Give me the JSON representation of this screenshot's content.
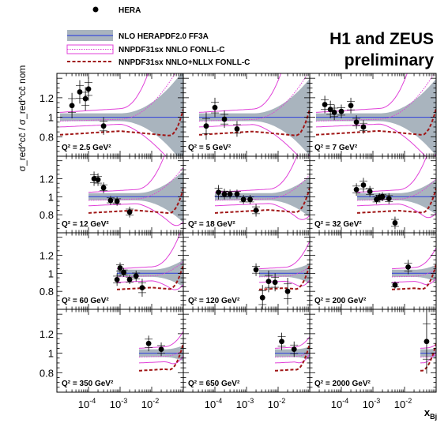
{
  "header": {
    "title_line1": "H1 and ZEUS",
    "title_line2": "preliminary"
  },
  "legend": [
    {
      "key": "hera",
      "label": "HERA"
    },
    {
      "key": "herapdf",
      "label": "NLO HERAPDF2.0 FF3A"
    },
    {
      "key": "nnlo",
      "label": "NNPDF31sx NNLO FONLL-C"
    },
    {
      "key": "nnllx",
      "label": "NNPDF31sx NNLO+NLLX FONLL-C"
    }
  ],
  "colors": {
    "band": "#a9b4be",
    "central": "#3b4bd8",
    "nnpdf": "#e040d8",
    "nnllx": "#a01616",
    "data": "#000000"
  },
  "chart_data": {
    "type": "scatter",
    "layout": "3x4 grid of panels",
    "xlabel": "x_Bj",
    "ylabel": "σ_red^cc̄ / σ_red^cc̄ nom",
    "x_log": true,
    "xlim": [
      1e-05,
      0.1
    ],
    "ylim": [
      0.6,
      1.45
    ],
    "x_ticks": [
      "10^-4",
      "10^-3",
      "10^-2"
    ],
    "y_ticks": [
      "0.8",
      "1",
      "1.2"
    ],
    "panels": [
      {
        "q2_label": "Q² = 2.5 GeV²",
        "points": [
          {
            "x": 3e-05,
            "y": 1.12,
            "err": 0.13
          },
          {
            "x": 5.3e-05,
            "y": 1.26,
            "err": 0.12
          },
          {
            "x": 8e-05,
            "y": 1.19,
            "err": 0.12
          },
          {
            "x": 0.0001,
            "y": 1.29,
            "err": 0.12
          },
          {
            "x": 0.0003,
            "y": 0.91,
            "err": 0.09
          }
        ]
      },
      {
        "q2_label": "Q² = 5 GeV²",
        "points": [
          {
            "x": 5.3e-05,
            "y": 0.91,
            "err": 0.14
          },
          {
            "x": 0.0001,
            "y": 1.1,
            "err": 0.1
          },
          {
            "x": 0.0002,
            "y": 0.98,
            "err": 0.09
          },
          {
            "x": 0.0005,
            "y": 0.88,
            "err": 0.08
          }
        ]
      },
      {
        "q2_label": "Q² = 7 GeV²",
        "points": [
          {
            "x": 3e-05,
            "y": 1.13,
            "err": 0.09
          },
          {
            "x": 4.5e-05,
            "y": 1.08,
            "err": 0.09
          },
          {
            "x": 6e-05,
            "y": 1.05,
            "err": 0.08
          },
          {
            "x": 0.0001,
            "y": 1.06,
            "err": 0.07
          },
          {
            "x": 0.0002,
            "y": 1.12,
            "err": 0.08
          },
          {
            "x": 0.0003,
            "y": 0.95,
            "err": 0.07
          },
          {
            "x": 0.0005,
            "y": 0.9,
            "err": 0.07
          }
        ]
      },
      {
        "q2_label": "Q² = 12 GeV²",
        "points": [
          {
            "x": 0.00015,
            "y": 1.2,
            "err": 0.08
          },
          {
            "x": 0.0002,
            "y": 1.19,
            "err": 0.07
          },
          {
            "x": 0.0003,
            "y": 1.1,
            "err": 0.06
          },
          {
            "x": 0.0005,
            "y": 0.96,
            "err": 0.05
          },
          {
            "x": 0.0008,
            "y": 0.95,
            "err": 0.05
          },
          {
            "x": 0.002,
            "y": 0.83,
            "err": 0.06
          }
        ]
      },
      {
        "q2_label": "Q² = 18 GeV²",
        "points": [
          {
            "x": 0.00013,
            "y": 1.05,
            "err": 0.08
          },
          {
            "x": 0.0002,
            "y": 1.03,
            "err": 0.06
          },
          {
            "x": 0.0003,
            "y": 1.03,
            "err": 0.05
          },
          {
            "x": 0.0005,
            "y": 1.03,
            "err": 0.05
          },
          {
            "x": 0.0008,
            "y": 0.97,
            "err": 0.05
          },
          {
            "x": 0.0013,
            "y": 0.97,
            "err": 0.05
          },
          {
            "x": 0.002,
            "y": 0.85,
            "err": 0.07
          }
        ]
      },
      {
        "q2_label": "Q² = 32 GeV²",
        "points": [
          {
            "x": 0.0003,
            "y": 1.08,
            "err": 0.07
          },
          {
            "x": 0.0005,
            "y": 1.13,
            "err": 0.08
          },
          {
            "x": 0.0008,
            "y": 1.06,
            "err": 0.06
          },
          {
            "x": 0.0013,
            "y": 0.97,
            "err": 0.05
          },
          {
            "x": 0.0016,
            "y": 0.99,
            "err": 0.05
          },
          {
            "x": 0.002,
            "y": 1.0,
            "err": 0.05
          },
          {
            "x": 0.0032,
            "y": 0.98,
            "err": 0.06
          },
          {
            "x": 0.005,
            "y": 0.71,
            "err": 0.07
          }
        ]
      },
      {
        "q2_label": "Q² = 60 GeV²",
        "points": [
          {
            "x": 0.0008,
            "y": 0.93,
            "err": 0.07
          },
          {
            "x": 0.001,
            "y": 1.06,
            "err": 0.06
          },
          {
            "x": 0.0013,
            "y": 1.01,
            "err": 0.05
          },
          {
            "x": 0.002,
            "y": 0.93,
            "err": 0.05
          },
          {
            "x": 0.0032,
            "y": 0.97,
            "err": 0.06
          },
          {
            "x": 0.005,
            "y": 0.84,
            "err": 0.1
          }
        ]
      },
      {
        "q2_label": "Q² = 120 GeV²",
        "points": [
          {
            "x": 0.002,
            "y": 1.04,
            "err": 0.07
          },
          {
            "x": 0.0032,
            "y": 0.73,
            "err": 0.14
          },
          {
            "x": 0.005,
            "y": 0.91,
            "err": 0.12
          },
          {
            "x": 0.008,
            "y": 0.9,
            "err": 0.1
          },
          {
            "x": 0.02,
            "y": 0.8,
            "err": 0.15
          }
        ]
      },
      {
        "q2_label": "Q² = 200 GeV²",
        "points": [
          {
            "x": 0.005,
            "y": 0.87,
            "err": 0.04
          },
          {
            "x": 0.013,
            "y": 1.07,
            "err": 0.08
          }
        ]
      },
      {
        "q2_label": "Q² = 350 GeV²",
        "points": [
          {
            "x": 0.008,
            "y": 1.1,
            "err": 0.08
          },
          {
            "x": 0.02,
            "y": 1.04,
            "err": 0.07
          }
        ]
      },
      {
        "q2_label": "Q² = 650 GeV²",
        "points": [
          {
            "x": 0.013,
            "y": 1.12,
            "err": 0.09
          },
          {
            "x": 0.032,
            "y": 1.04,
            "err": 0.08
          }
        ]
      },
      {
        "q2_label": "Q² = 2000 GeV²",
        "points": [
          {
            "x": 0.05,
            "y": 1.12,
            "err": 0.33
          }
        ]
      }
    ]
  }
}
